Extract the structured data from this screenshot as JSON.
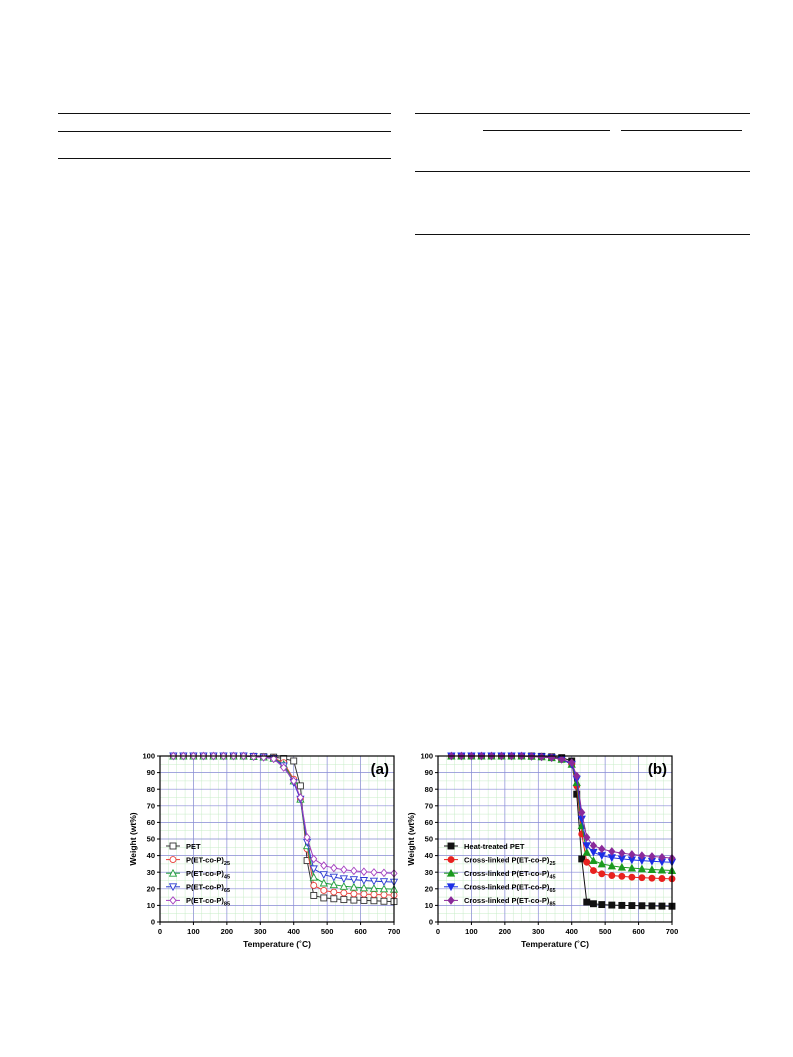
{
  "chart_data": [
    {
      "type": "line",
      "panel_label": "(a)",
      "xlabel": "Temperature (˚C)",
      "ylabel": "Weight (wt%)",
      "xlim": [
        0,
        700
      ],
      "ylim": [
        0,
        100
      ],
      "xticks": [
        0,
        100,
        200,
        300,
        400,
        500,
        600,
        700
      ],
      "yticks": [
        0,
        10,
        20,
        30,
        40,
        50,
        60,
        70,
        80,
        90,
        100
      ],
      "grid": true,
      "legend_position": "bottom-left",
      "x": [
        40,
        70,
        100,
        130,
        160,
        190,
        220,
        250,
        280,
        310,
        340,
        370,
        400,
        420,
        440,
        460,
        490,
        520,
        550,
        580,
        610,
        640,
        670,
        700
      ],
      "series": [
        {
          "name": "PET",
          "sub": "",
          "color": "#333333",
          "marker": "square-open",
          "values": [
            100,
            100,
            100,
            100,
            100,
            100,
            100,
            100,
            99.8,
            99.6,
            99.3,
            98.5,
            97,
            82,
            37,
            16,
            14.5,
            14,
            13.5,
            13.2,
            13,
            12.8,
            12.5,
            12.3
          ]
        },
        {
          "name": "P(ET-co-P)",
          "sub": "25",
          "color": "#e8403a",
          "marker": "circle-open",
          "values": [
            100,
            100,
            100,
            100,
            100,
            100,
            100,
            100,
            99.7,
            99.4,
            98.8,
            96,
            86,
            74,
            44,
            22,
            19,
            18,
            17.5,
            17,
            16.8,
            16.6,
            16.4,
            16.2
          ]
        },
        {
          "name": "P(ET-co-P)",
          "sub": "45",
          "color": "#1f9e3a",
          "marker": "triangle-up-open",
          "values": [
            100,
            100,
            100,
            100,
            100,
            100,
            100,
            100,
            99.7,
            99.4,
            98.6,
            95,
            85,
            74,
            46,
            27,
            23.5,
            22.5,
            21.5,
            21,
            20.6,
            20.3,
            20,
            19.8
          ]
        },
        {
          "name": "P(ET-co-P)",
          "sub": "65",
          "color": "#2b3bd1",
          "marker": "triangle-down-open",
          "values": [
            100,
            100,
            100,
            100,
            100,
            100,
            100,
            100,
            99.7,
            99.3,
            98.5,
            94,
            84,
            74,
            48,
            32,
            28.5,
            27,
            26,
            25.5,
            25,
            24.6,
            24.3,
            24
          ]
        },
        {
          "name": "P(ET-co-P)",
          "sub": "85",
          "color": "#a33fbf",
          "marker": "diamond-open",
          "values": [
            100,
            100,
            100,
            100,
            100,
            100,
            100,
            100,
            99.6,
            99.2,
            98.3,
            93,
            85,
            75,
            51,
            38,
            34,
            32.5,
            31.5,
            30.8,
            30.3,
            29.9,
            29.6,
            29.3
          ]
        }
      ]
    },
    {
      "type": "line",
      "panel_label": "(b)",
      "xlabel": "Temperature (˚C)",
      "ylabel": "Weight (wt%)",
      "xlim": [
        0,
        700
      ],
      "ylim": [
        0,
        100
      ],
      "xticks": [
        0,
        100,
        200,
        300,
        400,
        500,
        600,
        700
      ],
      "yticks": [
        0,
        10,
        20,
        30,
        40,
        50,
        60,
        70,
        80,
        90,
        100
      ],
      "grid": true,
      "legend_position": "bottom-left",
      "x": [
        40,
        70,
        100,
        130,
        160,
        190,
        220,
        250,
        280,
        310,
        340,
        370,
        400,
        415,
        430,
        445,
        465,
        490,
        520,
        550,
        580,
        610,
        640,
        670,
        700
      ],
      "series": [
        {
          "name": "Heat-treated PET",
          "sub": "",
          "color": "#111111",
          "marker": "square-filled",
          "values": [
            100,
            100,
            100,
            100,
            100,
            100,
            100,
            100,
            100,
            99.8,
            99.5,
            99,
            97,
            77,
            38,
            12,
            11,
            10.5,
            10.2,
            10,
            9.9,
            9.8,
            9.7,
            9.6,
            9.5
          ]
        },
        {
          "name": "Cross-linked P(ET-co-P)",
          "sub": "25",
          "color": "#e8211f",
          "marker": "circle-filled",
          "values": [
            100,
            100,
            100,
            100,
            100,
            100,
            100,
            100,
            99.8,
            99.5,
            99,
            98,
            95,
            82,
            53,
            36,
            31,
            29,
            28,
            27.5,
            27,
            26.7,
            26.4,
            26.2,
            26
          ]
        },
        {
          "name": "Cross-linked P(ET-co-P)",
          "sub": "45",
          "color": "#1a9a1f",
          "marker": "triangle-up-filled",
          "values": [
            100,
            100,
            100,
            100,
            100,
            100,
            100,
            100,
            99.8,
            99.5,
            99,
            98,
            95,
            84,
            58,
            42,
            37,
            35,
            33.8,
            33,
            32.5,
            32,
            31.6,
            31.3,
            31
          ]
        },
        {
          "name": "Cross-linked P(ET-co-P)",
          "sub": "65",
          "color": "#1c2ee6",
          "marker": "triangle-down-filled",
          "values": [
            100,
            100,
            100,
            100,
            100,
            100,
            100,
            100,
            99.8,
            99.5,
            99,
            98,
            95,
            86,
            62,
            46,
            42,
            40,
            38.7,
            38,
            37.4,
            37,
            36.6,
            36.2,
            36
          ]
        },
        {
          "name": "Cross-linked P(ET-co-P)",
          "sub": "85",
          "color": "#8a2a9a",
          "marker": "diamond-filled",
          "values": [
            100,
            100,
            100,
            100,
            100,
            100,
            100,
            100,
            99.8,
            99.5,
            99,
            98,
            96,
            88,
            66,
            51,
            46,
            44,
            42.5,
            41.5,
            40.7,
            40,
            39.5,
            39,
            38.5
          ]
        }
      ]
    }
  ]
}
